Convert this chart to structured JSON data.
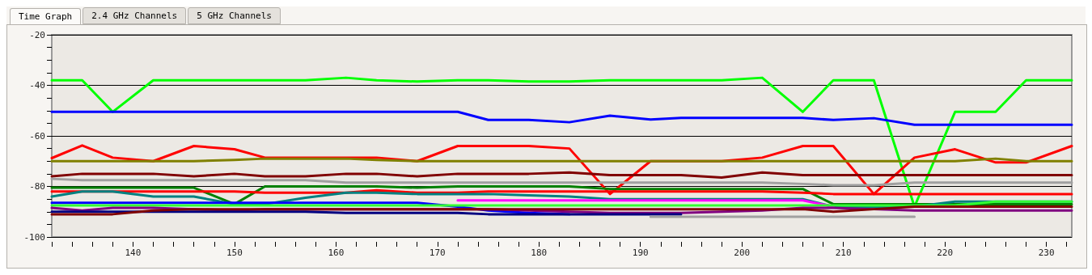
{
  "chart_data": {
    "type": "line",
    "annotations": [
      "Time Graph",
      "2.4 GHz Channels",
      "5 GHz Channels"
    ],
    "x": [
      132,
      135,
      138,
      142,
      146,
      150,
      153,
      157,
      161,
      164,
      168,
      172,
      175,
      179,
      183,
      187,
      191,
      194,
      198,
      202,
      206,
      209,
      213,
      217,
      221,
      225,
      228,
      232.5
    ],
    "xlim": [
      132,
      232.5
    ],
    "xticks": [
      {
        "value": 132,
        "label": null
      },
      {
        "value": 134,
        "label": null
      },
      {
        "value": 136,
        "label": null
      },
      {
        "value": 138,
        "label": null
      },
      140,
      {
        "value": 142,
        "label": null
      },
      {
        "value": 144,
        "label": null
      },
      {
        "value": 146,
        "label": null
      },
      {
        "value": 148,
        "label": null
      },
      150,
      {
        "value": 152,
        "label": null
      },
      {
        "value": 154,
        "label": null
      },
      {
        "value": 156,
        "label": null
      },
      {
        "value": 158,
        "label": null
      },
      160,
      {
        "value": 162,
        "label": null
      },
      {
        "value": 164,
        "label": null
      },
      {
        "value": 166,
        "label": null
      },
      {
        "value": 168,
        "label": null
      },
      170,
      {
        "value": 172,
        "label": null
      },
      {
        "value": 174,
        "label": null
      },
      {
        "value": 176,
        "label": null
      },
      {
        "value": 178,
        "label": null
      },
      180,
      {
        "value": 182,
        "label": null
      },
      {
        "value": 184,
        "label": null
      },
      {
        "value": 186,
        "label": null
      },
      {
        "value": 188,
        "label": null
      },
      190,
      {
        "value": 192,
        "label": null
      },
      {
        "value": 194,
        "label": null
      },
      {
        "value": 196,
        "label": null
      },
      {
        "value": 198,
        "label": null
      },
      200,
      {
        "value": 202,
        "label": null
      },
      {
        "value": 204,
        "label": null
      },
      {
        "value": 206,
        "label": null
      },
      {
        "value": 208,
        "label": null
      },
      210,
      {
        "value": 212,
        "label": null
      },
      {
        "value": 214,
        "label": null
      },
      {
        "value": 216,
        "label": null
      },
      {
        "value": 218,
        "label": null
      },
      220,
      {
        "value": 222,
        "label": null
      },
      {
        "value": 224,
        "label": null
      },
      {
        "value": 226,
        "label": null
      },
      {
        "value": 228,
        "label": null
      },
      230,
      {
        "value": 232,
        "label": null
      }
    ],
    "ylim": [
      -100,
      -20
    ],
    "yticks": [
      -100,
      {
        "value": -95,
        "label": null
      },
      {
        "value": -90,
        "label": null
      },
      {
        "value": -85,
        "label": null
      },
      -80,
      {
        "value": -75,
        "label": null
      },
      {
        "value": -70,
        "label": null
      },
      {
        "value": -65,
        "label": null
      },
      -60,
      {
        "value": -55,
        "label": null
      },
      {
        "value": -50,
        "label": null
      },
      {
        "value": -45,
        "label": null
      },
      -40,
      {
        "value": -35,
        "label": null
      },
      {
        "value": -30,
        "label": null
      },
      {
        "value": -25,
        "label": null
      },
      -20
    ],
    "grid": "y",
    "marker": "none",
    "line_style": "solid",
    "series": [
      {
        "color": "#00ff00",
        "values": [
          -38,
          -38,
          -50.5,
          -38,
          -38,
          -38,
          -38,
          -38,
          -37,
          -38,
          -38.5,
          -38,
          -38,
          -38.5,
          -38.5,
          -38,
          -38,
          -38,
          -38,
          -37,
          -50.5,
          -38,
          -38,
          -88,
          -50.5,
          -50.5,
          -38,
          -38
        ]
      },
      {
        "color": "#0000ff",
        "values": [
          -50.5,
          -50.5,
          -50.5,
          -50.5,
          -50.5,
          -50.5,
          -50.5,
          -50.5,
          -50.5,
          -50.5,
          -50.5,
          -50.5,
          -53.7,
          -53.7,
          -54.6,
          -52,
          -53.5,
          -52.9,
          -52.9,
          -52.9,
          -52.9,
          -53.7,
          -53,
          -55.6,
          -55.6,
          -55.6,
          -55.6,
          -55.6
        ]
      },
      {
        "color": "#ff0000",
        "values": [
          -68.8,
          -63.8,
          -68.6,
          -70,
          -64,
          -65.3,
          -68.6,
          -68.6,
          -68.6,
          -68.6,
          -70,
          -64,
          -64,
          -64,
          -65,
          -83,
          -70,
          -70,
          -70,
          -68.6,
          -64,
          -64,
          -83,
          -68.6,
          -65.3,
          -70.5,
          -70.5,
          -64
        ]
      },
      {
        "color": "#808000",
        "values": [
          -70,
          -70,
          -70,
          -70,
          -70,
          -69.5,
          -69,
          -69,
          -69,
          -69.5,
          -70,
          -70,
          -70,
          -70,
          -70,
          -70,
          -70,
          -70,
          -70,
          -70,
          -70,
          -70,
          -70,
          -70,
          -70,
          -69,
          -70,
          -70
        ]
      },
      {
        "color": "#800000",
        "values": [
          -76,
          -75,
          -75,
          -75,
          -76,
          -75,
          -76,
          -76,
          -75,
          -75,
          -76,
          -75,
          -75,
          -75,
          -74.5,
          -75.5,
          -75.5,
          -75.5,
          -76.5,
          -74.5,
          -75.5,
          -75.5,
          -75.5,
          -75.5,
          -75.5,
          -75.5,
          -75.5,
          -75.5
        ]
      },
      {
        "color": "#a0a0a0",
        "values": [
          -77,
          -77.5,
          -77.5,
          -77.5,
          -77.5,
          -77.5,
          -77.5,
          -77.5,
          -78.5,
          -78.5,
          -78.5,
          -78.5,
          -78.5,
          -78.5,
          -78.5,
          -78.5,
          -78.5,
          -78.5,
          -78.5,
          -78.5,
          -79,
          -79.5,
          -79.5,
          -78.5,
          -78.5,
          -78.5,
          -78.5,
          -78.5
        ]
      },
      {
        "color": "#008000",
        "values": [
          -80.5,
          -80.5,
          -80.5,
          -80.5,
          -80.5,
          -87,
          -80,
          -80,
          -80,
          -80,
          -80.5,
          -80,
          -80,
          -80,
          -80,
          -81,
          -81,
          -81,
          -81,
          -81,
          -81,
          -87,
          -87,
          -87,
          -87,
          -87,
          -87,
          -87
        ]
      },
      {
        "color": "#ff0000",
        "values": [
          -82,
          -82,
          -82,
          -82,
          -82,
          -82,
          -82.5,
          -82.5,
          -82.5,
          -81.5,
          -82.5,
          -82.5,
          -82,
          -82,
          -82,
          -82,
          -82,
          -82,
          -82,
          -82,
          -82.5,
          -83,
          -83,
          -83,
          -83,
          -83,
          -83,
          -83
        ]
      },
      {
        "color": "#008080",
        "values": [
          -84,
          -82,
          -82,
          -84,
          -84,
          -87,
          -87,
          -84.5,
          -82.5,
          -82.5,
          -83,
          -83,
          -83,
          -83.5,
          -84,
          -85,
          -85,
          -85,
          -85,
          -85,
          -85,
          -88,
          -88,
          -88,
          -86,
          -86,
          -86,
          -86
        ]
      },
      {
        "color": "#ff00ff",
        "values": [
          null,
          null,
          null,
          null,
          null,
          null,
          null,
          null,
          null,
          null,
          null,
          -85.5,
          -85.5,
          -85.5,
          -85.5,
          -85.5,
          -85.5,
          -85.5,
          -85.5,
          -85.5,
          -85.5,
          -88,
          null,
          null,
          null,
          null,
          null,
          null
        ]
      },
      {
        "color": "#0000ff",
        "values": [
          -86.5,
          -86.5,
          -86.5,
          -86.5,
          -86.5,
          -86.5,
          -86.5,
          -86.5,
          -86.5,
          -86.5,
          -86.5,
          -88,
          -89.5,
          -90.5,
          -91,
          null,
          null,
          null,
          null,
          null,
          null,
          null,
          null,
          null,
          null,
          null,
          null,
          null
        ]
      },
      {
        "color": "#33ff33",
        "values": [
          -87.5,
          -87.5,
          -87.5,
          -87.5,
          -87.5,
          -87.5,
          -87.5,
          -87.5,
          -87.5,
          -87.5,
          -87.5,
          -87.5,
          -87.5,
          -87.5,
          -87.5,
          -87.5,
          -87.5,
          -87.5,
          -87.5,
          -87.5,
          -87.5,
          -87.5,
          -87.5,
          -87.5,
          -87.5,
          -86,
          -86,
          -86
        ]
      },
      {
        "color": "#800080",
        "values": [
          -88.5,
          -89.5,
          -88.5,
          -88.5,
          -89,
          -89.5,
          -89,
          -89,
          -89,
          -89,
          -89,
          -89,
          -89,
          -89.5,
          -90,
          -90.5,
          -90.5,
          -90.5,
          -90,
          -89.5,
          -88.5,
          -88.5,
          -89,
          -89.5,
          -89.5,
          -89.5,
          -89.5,
          -89.5
        ]
      },
      {
        "color": "#000080",
        "values": [
          -90,
          -90,
          -90,
          -90,
          -90,
          -90,
          -90,
          -90,
          -90.5,
          -90.5,
          -90.5,
          -90.5,
          -91,
          -91,
          -91,
          -91,
          -91,
          -91,
          null,
          null,
          null,
          null,
          null,
          null,
          null,
          null,
          null,
          null
        ]
      },
      {
        "color": "#800000",
        "values": [
          -91,
          -91,
          -91,
          -89.5,
          -89,
          -89,
          -89,
          -89,
          -89,
          -89,
          -89,
          -89,
          -89,
          -89,
          -89,
          -89,
          -89,
          -89,
          -89,
          -89,
          -89,
          -90,
          -89,
          -88,
          -88,
          -88,
          -88,
          -88
        ]
      },
      {
        "color": "#a0a0a0",
        "values": [
          null,
          null,
          null,
          null,
          null,
          null,
          null,
          null,
          null,
          null,
          null,
          null,
          null,
          null,
          null,
          null,
          -92,
          -92,
          -92,
          -92,
          -92,
          -92,
          -92,
          -92,
          null,
          null,
          null,
          null
        ]
      }
    ]
  }
}
